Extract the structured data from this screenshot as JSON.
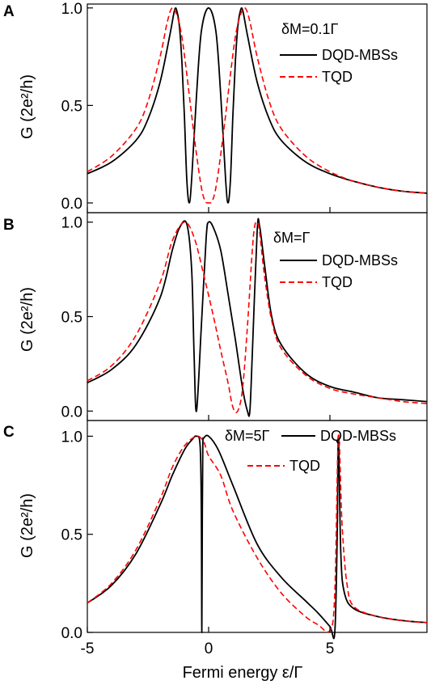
{
  "figure": {
    "xlabel": "Fermi energy ε/Γ",
    "ylabel": "G (2e²/h)",
    "x_ticks": [
      "-5",
      "0",
      "5"
    ],
    "y_ticks": [
      "0.0",
      "0.5",
      "1.0"
    ]
  },
  "chart_data": [
    {
      "type": "line",
      "panel": "A",
      "annotation": "δM=0.1Γ",
      "xlim": [
        -5,
        9
      ],
      "ylim": [
        -0.05,
        1.02
      ],
      "x_ticks": [
        -5,
        0,
        5
      ],
      "y_ticks": [
        0.0,
        0.5,
        1.0
      ],
      "series": [
        {
          "name": "DQD-MBSs",
          "color": "#000000",
          "dash": "solid",
          "x": [
            -5,
            -4,
            -3,
            -2.5,
            -2,
            -1.6,
            -1.4,
            -1.3,
            -1.2,
            -1.1,
            -1.0,
            -0.9,
            -0.8,
            -0.7,
            -0.5,
            -0.3,
            0,
            0.3,
            0.5,
            0.7,
            0.8,
            0.9,
            1.0,
            1.1,
            1.2,
            1.3,
            1.4,
            1.6,
            2,
            2.5,
            3,
            4,
            5,
            6,
            7,
            8,
            9
          ],
          "y": [
            0.15,
            0.21,
            0.32,
            0.43,
            0.62,
            0.86,
            0.99,
            0.98,
            0.9,
            0.72,
            0.45,
            0.12,
            0.0,
            0.12,
            0.55,
            0.88,
            1.0,
            0.88,
            0.55,
            0.12,
            0.0,
            0.12,
            0.45,
            0.72,
            0.9,
            0.98,
            0.99,
            0.86,
            0.62,
            0.43,
            0.32,
            0.21,
            0.15,
            0.11,
            0.08,
            0.06,
            0.05
          ]
        },
        {
          "name": "TQD",
          "color": "#ff0000",
          "dash": "dashed",
          "x": [
            -5,
            -4,
            -3,
            -2.5,
            -2,
            -1.7,
            -1.5,
            -1.3,
            -1.1,
            -0.9,
            -0.7,
            -0.5,
            -0.3,
            -0.15,
            0,
            0.15,
            0.3,
            0.5,
            0.7,
            0.9,
            1.1,
            1.3,
            1.5,
            1.7,
            2,
            2.5,
            3,
            4,
            5,
            6,
            7,
            8,
            9
          ],
          "y": [
            0.16,
            0.24,
            0.38,
            0.52,
            0.75,
            0.93,
            1.0,
            0.96,
            0.85,
            0.66,
            0.45,
            0.25,
            0.08,
            0.01,
            0.0,
            0.01,
            0.08,
            0.25,
            0.45,
            0.66,
            0.85,
            0.96,
            1.0,
            0.93,
            0.75,
            0.52,
            0.38,
            0.24,
            0.16,
            0.11,
            0.08,
            0.06,
            0.05
          ]
        }
      ]
    },
    {
      "type": "line",
      "panel": "B",
      "annotation": "δM=Γ",
      "xlim": [
        -5,
        9
      ],
      "ylim": [
        -0.05,
        1.05
      ],
      "x_ticks": [
        -5,
        0,
        5
      ],
      "y_ticks": [
        0.0,
        0.5,
        1.0
      ],
      "series": [
        {
          "name": "DQD-MBSs",
          "color": "#000000",
          "dash": "solid",
          "x": [
            -5,
            -4,
            -3,
            -2,
            -1.5,
            -1.2,
            -0.9,
            -0.7,
            -0.6,
            -0.5,
            -0.3,
            -0.1,
            0,
            0.2,
            0.5,
            0.8,
            1.1,
            1.4,
            1.6,
            1.7,
            1.8,
            2.0,
            2.1,
            2.3,
            2.6,
            3,
            4,
            5,
            6,
            7,
            8,
            9
          ],
          "y": [
            0.15,
            0.22,
            0.35,
            0.6,
            0.85,
            0.97,
            0.99,
            0.75,
            0.3,
            0.0,
            0.45,
            0.92,
            1.0,
            0.97,
            0.85,
            0.62,
            0.38,
            0.12,
            0.0,
            0.0,
            0.3,
            0.95,
            0.98,
            0.78,
            0.5,
            0.35,
            0.2,
            0.13,
            0.1,
            0.07,
            0.06,
            0.05
          ]
        },
        {
          "name": "TQD",
          "color": "#ff0000",
          "dash": "dashed",
          "x": [
            -5,
            -4,
            -3,
            -2,
            -1.5,
            -1.0,
            -0.6,
            -0.2,
            0.2,
            0.5,
            0.8,
            1.0,
            1.2,
            1.4,
            1.6,
            1.8,
            1.9,
            2.0,
            2.1,
            2.3,
            2.6,
            3,
            4,
            5,
            6,
            7,
            8,
            9
          ],
          "y": [
            0.16,
            0.24,
            0.4,
            0.68,
            0.9,
            1.0,
            0.92,
            0.72,
            0.5,
            0.32,
            0.15,
            0.02,
            0.0,
            0.12,
            0.45,
            0.85,
            0.98,
            1.0,
            0.95,
            0.72,
            0.48,
            0.33,
            0.19,
            0.12,
            0.09,
            0.07,
            0.05,
            0.04
          ]
        }
      ]
    },
    {
      "type": "line",
      "panel": "C",
      "annotation": "δM=5Γ",
      "xlim": [
        -5,
        9
      ],
      "ylim": [
        0,
        1.08
      ],
      "x_ticks": [
        -5,
        0,
        5
      ],
      "y_ticks": [
        0.0,
        0.5,
        1.0
      ],
      "series": [
        {
          "name": "DQD-MBSs",
          "color": "#000000",
          "dash": "solid",
          "x": [
            -5,
            -4,
            -3,
            -2,
            -1.5,
            -1,
            -0.7,
            -0.5,
            -0.35,
            -0.3,
            -0.28,
            -0.26,
            -0.24,
            -0.2,
            0,
            0.4,
            1,
            2,
            3,
            4,
            4.5,
            5,
            5.2,
            5.3,
            5.35,
            5.45,
            5.6,
            6,
            7,
            8,
            9
          ],
          "y": [
            0.15,
            0.24,
            0.4,
            0.65,
            0.8,
            0.93,
            0.98,
            1.0,
            0.95,
            0.6,
            0.0,
            0.6,
            0.95,
            0.99,
            1.0,
            0.93,
            0.75,
            0.45,
            0.28,
            0.16,
            0.1,
            0.03,
            0.0,
            0.5,
            1.0,
            0.4,
            0.2,
            0.12,
            0.08,
            0.06,
            0.05
          ]
        },
        {
          "name": "TQD",
          "color": "#ff0000",
          "dash": "dashed",
          "x": [
            -5,
            -4,
            -3,
            -2,
            -1.5,
            -1,
            -0.5,
            -0.2,
            0,
            0.5,
            1,
            2,
            3,
            4,
            4.5,
            5,
            5.2,
            5.35,
            5.5,
            5.7,
            6,
            7,
            8,
            9
          ],
          "y": [
            0.15,
            0.25,
            0.42,
            0.68,
            0.84,
            0.95,
            1.0,
            0.97,
            0.9,
            0.8,
            0.62,
            0.38,
            0.2,
            0.08,
            0.04,
            0.01,
            0.2,
            1.0,
            0.55,
            0.25,
            0.13,
            0.08,
            0.06,
            0.05
          ]
        }
      ]
    }
  ],
  "legend": [
    {
      "panel": "A",
      "entries": [
        "DQD-MBSs",
        "TQD"
      ]
    },
    {
      "panel": "B",
      "entries": [
        "DQD-MBSs",
        "TQD"
      ]
    },
    {
      "panel": "C",
      "entries": [
        "DQD-MBSs",
        "TQD"
      ]
    }
  ]
}
